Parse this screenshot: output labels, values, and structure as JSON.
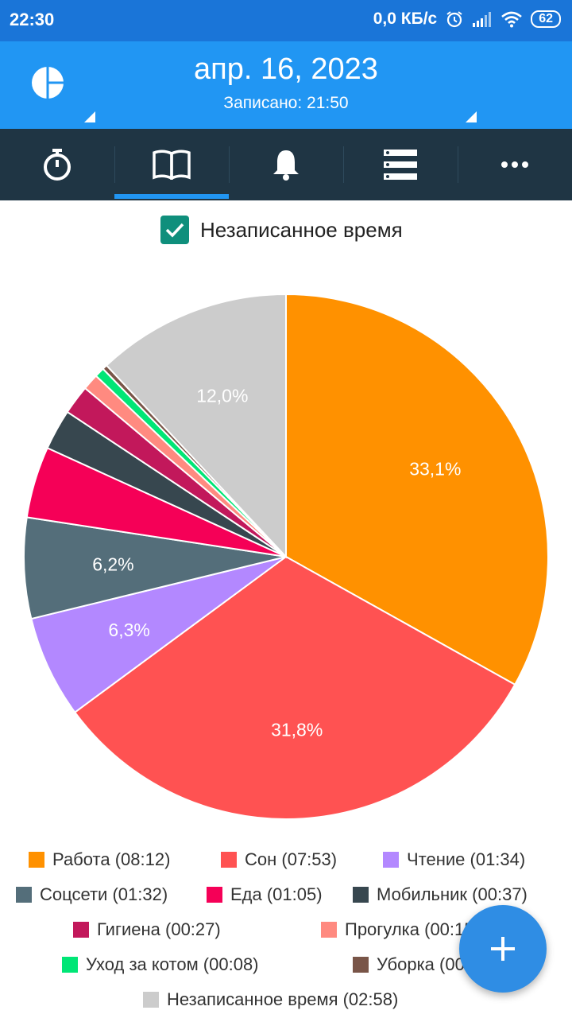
{
  "status_bar": {
    "time": "22:30",
    "network_speed": "0,0 КБ/с",
    "battery": "62",
    "icons": [
      "alarm-icon",
      "signal-icon",
      "wifi-icon",
      "battery-icon"
    ]
  },
  "header": {
    "date": "апр. 16, 2023",
    "recorded": "Записано: 21:50",
    "logo_icon": "pie-logo-icon"
  },
  "tabs": [
    {
      "icon": "stopwatch-icon",
      "active": false
    },
    {
      "icon": "book-icon",
      "active": true
    },
    {
      "icon": "bell-icon",
      "active": false
    },
    {
      "icon": "list-icon",
      "active": false
    },
    {
      "icon": "more-icon",
      "active": false
    }
  ],
  "unrecorded_toggle": {
    "label": "Незаписанное время",
    "checked": true
  },
  "chart_data": {
    "type": "pie",
    "slices": [
      {
        "name": "Работа",
        "duration": "08:12",
        "value": 33.1,
        "label": "33,1%",
        "color": "#ff9100"
      },
      {
        "name": "Сон",
        "duration": "07:53",
        "value": 31.8,
        "label": "31,8%",
        "color": "#ff5252"
      },
      {
        "name": "Чтение",
        "duration": "01:34",
        "value": 6.3,
        "label": "6,3%",
        "color": "#b388ff"
      },
      {
        "name": "Соцсети",
        "duration": "01:32",
        "value": 6.2,
        "label": "6,2%",
        "color": "#546e7a"
      },
      {
        "name": "Еда",
        "duration": "01:05",
        "value": 4.4,
        "label": "",
        "color": "#f50057"
      },
      {
        "name": "Мобильник",
        "duration": "00:37",
        "value": 2.5,
        "label": "",
        "color": "#37474f"
      },
      {
        "name": "Гигиена",
        "duration": "00:27",
        "value": 1.8,
        "label": "",
        "color": "#c2185b"
      },
      {
        "name": "Прогулка",
        "duration": "00:15",
        "value": 1.0,
        "label": "",
        "color": "#ff8a80"
      },
      {
        "name": "Уход за котом",
        "duration": "00:08",
        "value": 0.6,
        "label": "",
        "color": "#00e676"
      },
      {
        "name": "Уборка",
        "duration": "00:04",
        "value": 0.3,
        "label": "",
        "color": "#795548"
      },
      {
        "name": "Незаписанное время",
        "duration": "02:58",
        "value": 12.0,
        "label": "12,0%",
        "color": "#cccccc"
      }
    ]
  },
  "legend": [
    {
      "text": "Работа (08:12)",
      "color": "#ff9100"
    },
    {
      "text": "Сон (07:53)",
      "color": "#ff5252"
    },
    {
      "text": "Чтение (01:34)",
      "color": "#b388ff"
    },
    {
      "text": "Соцсети (01:32)",
      "color": "#546e7a"
    },
    {
      "text": "Еда (01:05)",
      "color": "#f50057"
    },
    {
      "text": "Мобильник  (00:37)",
      "color": "#37474f"
    },
    {
      "text": "Гигиена  (00:27)",
      "color": "#c2185b"
    },
    {
      "text": "Прогулка (00:15)",
      "color": "#ff8a80"
    },
    {
      "text": "Уход за котом (00:08)",
      "color": "#00e676"
    },
    {
      "text": "Уборка (00:04)",
      "color": "#795548"
    },
    {
      "text": "Незаписанное время (02:58)",
      "color": "#cccccc"
    }
  ],
  "fab": {
    "icon": "plus-icon"
  }
}
